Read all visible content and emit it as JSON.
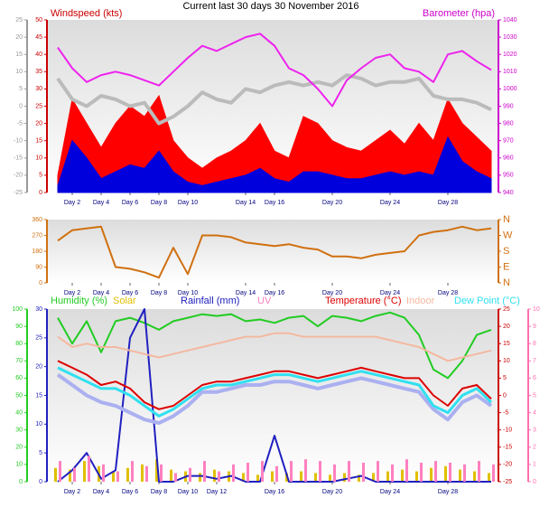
{
  "chart_data": [
    {
      "type": "line",
      "title": "Current last 30 days 30 November 2016",
      "ylabel": "Windspeed (kts)",
      "y2label": "Barometer (hpa)",
      "x": [
        1,
        2,
        3,
        4,
        5,
        6,
        7,
        8,
        9,
        10,
        11,
        12,
        13,
        14,
        15,
        16,
        17,
        18,
        19,
        20,
        21,
        22,
        23,
        24,
        25,
        26,
        27,
        28,
        29,
        30,
        31
      ],
      "xlim": [
        0.25,
        31.5
      ],
      "xticks": [
        {
          "value": 2,
          "label": "Day 2"
        },
        {
          "value": 4,
          "label": "Day 4"
        },
        {
          "value": 6,
          "label": "Day 6"
        },
        {
          "value": 8,
          "label": "Day 8"
        },
        {
          "value": 10,
          "label": "Day 10"
        },
        {
          "value": 14,
          "label": "Day 14"
        },
        {
          "value": 16,
          "label": "Day 16"
        },
        {
          "value": 20,
          "label": "Day 20"
        },
        {
          "value": 24,
          "label": "Day 24"
        },
        {
          "value": 28,
          "label": "Day 28"
        }
      ],
      "ylim": [
        0,
        50
      ],
      "yticks": [
        0,
        5,
        10,
        15,
        20,
        25,
        30,
        35,
        40,
        45,
        50
      ],
      "ycolor": "#cc0000",
      "y2lim": [
        940,
        1040
      ],
      "y2ticks": [
        940,
        950,
        960,
        970,
        980,
        990,
        1000,
        1010,
        1020,
        1030,
        1040
      ],
      "y2color": "#cc00cc",
      "y3lim": [
        -25,
        25
      ],
      "y3ticks": [
        -25,
        -20,
        -15,
        -10,
        -5,
        0,
        5,
        10,
        15,
        20,
        25
      ],
      "y3color": "#999999",
      "series": [
        {
          "color": "#ff0000",
          "style": "area",
          "axis": "y",
          "values": [
            5,
            27,
            20,
            13,
            20,
            25,
            22,
            28,
            15,
            10,
            7,
            10,
            12,
            15,
            20,
            12,
            10,
            22,
            20,
            15,
            13,
            12,
            15,
            18,
            14,
            20,
            15,
            27,
            20,
            16,
            12
          ]
        },
        {
          "color": "#0000dd",
          "style": "area",
          "axis": "y",
          "values": [
            2,
            15,
            10,
            4,
            6,
            8,
            7,
            12,
            6,
            3,
            2,
            3,
            4,
            5,
            7,
            4,
            3,
            6,
            6,
            5,
            4,
            4,
            5,
            6,
            5,
            6,
            5,
            16,
            9,
            6,
            4
          ]
        },
        {
          "color": "#bbbbbb",
          "style": "line",
          "width": 4,
          "axis": "y3",
          "values": [
            8,
            2,
            0,
            3,
            2,
            0,
            1,
            -5,
            -3,
            0,
            4,
            2,
            1,
            5,
            4,
            6,
            7,
            6,
            7,
            6,
            9,
            8,
            6,
            7,
            7,
            8,
            3,
            2,
            2,
            1,
            -1
          ]
        },
        {
          "color": "#ee22ee",
          "style": "line",
          "width": 2,
          "axis": "y2",
          "values": [
            1024,
            1012,
            1004,
            1008,
            1010,
            1008,
            1005,
            1002,
            1010,
            1018,
            1025,
            1022,
            1026,
            1030,
            1032,
            1025,
            1012,
            1008,
            1000,
            990,
            1005,
            1012,
            1018,
            1020,
            1012,
            1010,
            1004,
            1020,
            1022,
            1016,
            1011
          ]
        }
      ]
    },
    {
      "type": "line",
      "x": [
        1,
        2,
        3,
        4,
        5,
        6,
        7,
        8,
        9,
        10,
        11,
        12,
        13,
        14,
        15,
        16,
        17,
        18,
        19,
        20,
        21,
        22,
        23,
        24,
        25,
        26,
        27,
        28,
        29,
        30,
        31
      ],
      "xlim": [
        0.25,
        31.5
      ],
      "xticks": [
        {
          "value": 2,
          "label": "Day 2"
        },
        {
          "value": 4,
          "label": "Day 4"
        },
        {
          "value": 6,
          "label": "Day 6"
        },
        {
          "value": 8,
          "label": "Day 8"
        },
        {
          "value": 10,
          "label": "Day 10"
        },
        {
          "value": 14,
          "label": "Day 14"
        },
        {
          "value": 16,
          "label": "Day 16"
        },
        {
          "value": 20,
          "label": "Day 20"
        },
        {
          "value": 24,
          "label": "Day 24"
        },
        {
          "value": 28,
          "label": "Day 28"
        }
      ],
      "ylim": [
        0,
        360
      ],
      "yticks": [
        0,
        90,
        180,
        270,
        360
      ],
      "ycolor": "#d07010",
      "y2lim": [
        0,
        360
      ],
      "y2ticks": [
        {
          "value": 360,
          "label": "N"
        },
        {
          "value": 270,
          "label": "W"
        },
        {
          "value": 180,
          "label": "S"
        },
        {
          "value": 90,
          "label": "E"
        },
        {
          "value": 0,
          "label": "N"
        }
      ],
      "y2color": "#d07010",
      "series": [
        {
          "color": "#d07010",
          "style": "line",
          "width": 2,
          "axis": "y",
          "values": [
            240,
            300,
            310,
            320,
            90,
            80,
            60,
            30,
            200,
            50,
            270,
            270,
            260,
            230,
            220,
            210,
            220,
            200,
            190,
            150,
            150,
            140,
            160,
            170,
            180,
            270,
            290,
            300,
            320,
            300,
            310
          ]
        }
      ]
    },
    {
      "type": "line",
      "x": [
        1,
        2,
        3,
        4,
        5,
        6,
        7,
        8,
        9,
        10,
        11,
        12,
        13,
        14,
        15,
        16,
        17,
        18,
        19,
        20,
        21,
        22,
        23,
        24,
        25,
        26,
        27,
        28,
        29,
        30,
        31
      ],
      "xlim": [
        0.25,
        31.5
      ],
      "xticks": [
        {
          "value": 2,
          "label": "Day 2"
        },
        {
          "value": 4,
          "label": "Day 4"
        },
        {
          "value": 6,
          "label": "Day 6"
        },
        {
          "value": 8,
          "label": "Day 8"
        },
        {
          "value": 10,
          "label": "Day 10"
        },
        {
          "value": 12,
          "label": "Day 12"
        },
        {
          "value": 16,
          "label": "Day 16"
        },
        {
          "value": 20,
          "label": "Day 20"
        },
        {
          "value": 24,
          "label": "Day 24"
        },
        {
          "value": 28,
          "label": "Day 28"
        }
      ],
      "ylim": [
        0,
        30
      ],
      "yticks": [
        0,
        5,
        10,
        15,
        20,
        25,
        30
      ],
      "ycolor": "#2020c0",
      "y2lim": [
        -25,
        25
      ],
      "y2ticks": [
        -25,
        -20,
        -15,
        -10,
        -5,
        0,
        5,
        10,
        15,
        20,
        25
      ],
      "y2color": "#cc0000",
      "y3lim": [
        0,
        100
      ],
      "y3ticks": [
        0,
        10,
        20,
        30,
        40,
        50,
        60,
        70,
        80,
        90,
        100
      ],
      "y3color": "#22cc22",
      "y4lim": [
        0,
        10
      ],
      "y4ticks": [
        0,
        1,
        2,
        3,
        4,
        5,
        6,
        7,
        8,
        9,
        10
      ],
      "y4color": "#ff70b0",
      "series": [
        {
          "name": "Humidity (%)",
          "color": "#22cc22",
          "style": "line",
          "width": 2,
          "axis": "y3",
          "values": [
            95,
            80,
            93,
            75,
            93,
            95,
            92,
            88,
            93,
            95,
            97,
            96,
            97,
            93,
            94,
            92,
            95,
            96,
            90,
            96,
            95,
            93,
            96,
            98,
            95,
            85,
            65,
            60,
            70,
            85,
            88
          ]
        },
        {
          "name": "Solar",
          "color": "#e0c000",
          "style": "bar",
          "axis": "y4",
          "values": [
            0.8,
            0.7,
            1.2,
            0.9,
            0.6,
            0.8,
            1.0,
            1.3,
            0.7,
            0.6,
            0.5,
            0.7,
            0.6,
            0.5,
            0.4,
            0.6,
            0.5,
            0.6,
            0.5,
            0.4,
            0.5,
            0.4,
            0.5,
            0.6,
            0.7,
            0.6,
            0.8,
            0.9,
            0.7,
            0.6,
            0.5
          ]
        },
        {
          "name": "Rainfall (mm)",
          "color": "#2020c0",
          "style": "line",
          "width": 2,
          "axis": "y",
          "values": [
            0,
            2,
            5,
            0.5,
            2,
            25,
            30,
            0,
            0,
            1,
            1,
            0.5,
            1,
            0,
            0,
            8,
            0,
            0,
            0,
            0,
            0.5,
            1,
            0,
            0,
            0,
            0,
            0,
            0,
            0,
            0,
            0
          ]
        },
        {
          "name": "UV",
          "color": "#ff80c0",
          "style": "bar",
          "axis": "y4",
          "values": [
            1.2,
            0.8,
            1.5,
            1.0,
            0.6,
            1.2,
            0.9,
            1.0,
            0.5,
            0.8,
            1.2,
            0.6,
            1.0,
            1.1,
            1.2,
            0.9,
            1.2,
            1.3,
            1.2,
            1.0,
            1.2,
            1.1,
            1.2,
            1.0,
            1.3,
            1.1,
            1.2,
            1.1,
            1.0,
            1.2,
            1.0
          ]
        },
        {
          "color": "#aab0f0",
          "style": "line",
          "width": 4,
          "axis": "y2",
          "values": [
            6,
            3,
            0,
            -2,
            -3,
            -5,
            -7,
            -8,
            -6,
            -3,
            1,
            1,
            2,
            3,
            3,
            4,
            4,
            3,
            2,
            3,
            4,
            5,
            4,
            3,
            2,
            1,
            -4,
            -7,
            -2,
            0,
            -3
          ]
        },
        {
          "name": "Indoor",
          "color": "#f4b8a0",
          "style": "line",
          "width": 2,
          "axis": "y2",
          "values": [
            17,
            14,
            15,
            14,
            14,
            13,
            12,
            11,
            12,
            13,
            14,
            15,
            16,
            17,
            17,
            18,
            18,
            17,
            17,
            17,
            17,
            17,
            17,
            16,
            15,
            14,
            12,
            10,
            11,
            12,
            13
          ]
        },
        {
          "name": "Dew Point (°C)",
          "color": "#30e0f0",
          "style": "line",
          "width": 3,
          "axis": "y2",
          "values": [
            8,
            6,
            4,
            2,
            2,
            0,
            -3,
            -6,
            -4,
            -1,
            2,
            3,
            3,
            4,
            5,
            6,
            6,
            5,
            4,
            5,
            6,
            7,
            6,
            5,
            4,
            3,
            -3,
            -5,
            0,
            2,
            -2
          ]
        },
        {
          "name": "Temperature (°C)",
          "color": "#dd0000",
          "style": "line",
          "width": 2,
          "axis": "y2",
          "values": [
            10,
            8,
            6,
            3,
            4,
            2,
            -2,
            -4,
            -3,
            0,
            3,
            4,
            4,
            5,
            6,
            7,
            7,
            6,
            5,
            6,
            7,
            8,
            7,
            6,
            5,
            5,
            0,
            -3,
            2,
            3,
            -1
          ]
        }
      ]
    }
  ]
}
